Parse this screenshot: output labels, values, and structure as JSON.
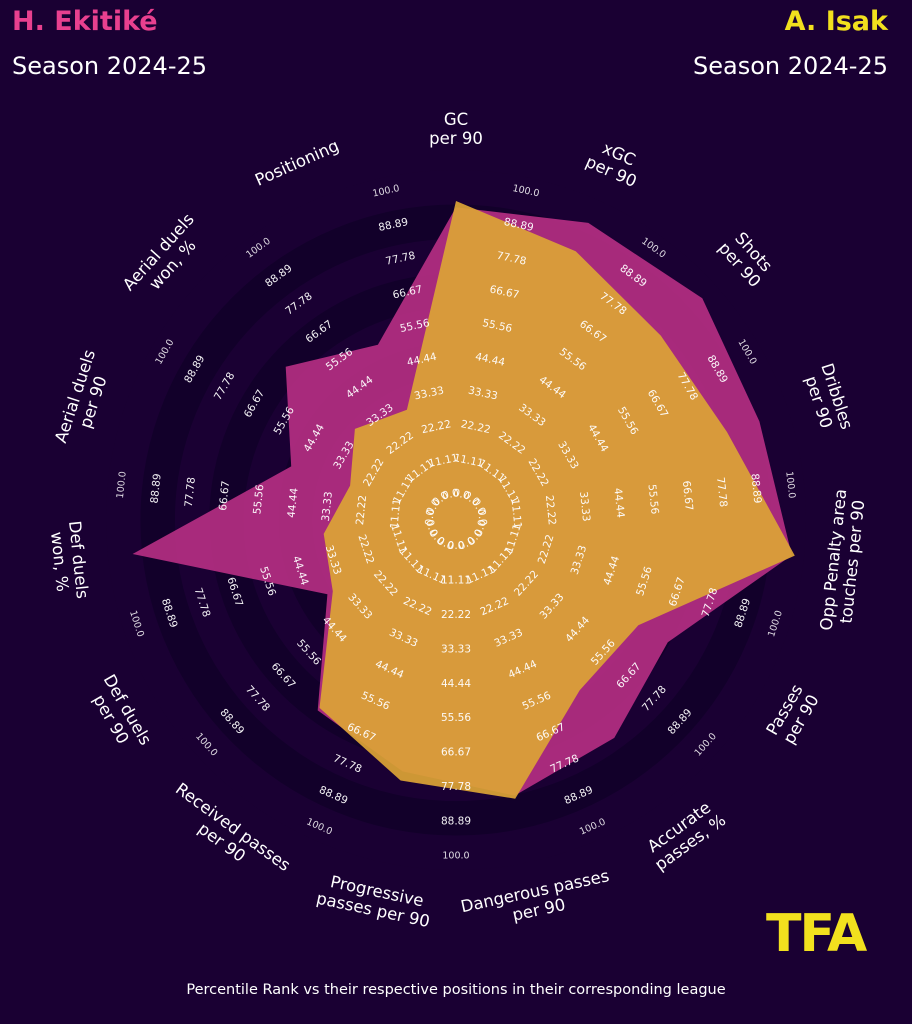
{
  "header": {
    "left": {
      "player": "H. Ekitiké",
      "season": "Season 2024-25"
    },
    "right": {
      "player": "A. Isak",
      "season": "Season 2024-25"
    }
  },
  "colors": {
    "background": "#1a0033",
    "ring_dark": "#12002a",
    "player1": "#c2318a",
    "player2": "#dca236",
    "overlap_note": "#8a8a2a",
    "logo": "#f2e01e"
  },
  "logo": "TFA",
  "footer": "Percentile Rank vs their respective positions in their corresponding league",
  "chart_data": {
    "type": "radar",
    "scale_ticks": [
      "0.0",
      "11.11",
      "22.22",
      "33.33",
      "44.44",
      "55.56",
      "66.67",
      "77.78",
      "88.89",
      "100.0"
    ],
    "range": [
      0,
      100
    ],
    "metrics": [
      {
        "lines": [
          "GC",
          "per 90"
        ]
      },
      {
        "lines": [
          "xGC",
          "per 90"
        ]
      },
      {
        "lines": [
          "Shots",
          "per 90"
        ]
      },
      {
        "lines": [
          "Dribbles",
          "per 90"
        ]
      },
      {
        "lines": [
          "Opp Penalty area",
          "touches per 90"
        ]
      },
      {
        "lines": [
          "Passes",
          "per 90"
        ]
      },
      {
        "lines": [
          "Accurate",
          "passes, %"
        ]
      },
      {
        "lines": [
          "Dangerous passes",
          "per 90"
        ]
      },
      {
        "lines": [
          "Progressive",
          "passes per 90"
        ]
      },
      {
        "lines": [
          "Received passes",
          "per 90"
        ]
      },
      {
        "lines": [
          "Def duels",
          "per 90"
        ]
      },
      {
        "lines": [
          "Def duels",
          "won, %"
        ]
      },
      {
        "lines": [
          "Aerial duels",
          "per 90"
        ]
      },
      {
        "lines": [
          "Aerial duels",
          "won, %"
        ]
      },
      {
        "lines": [
          "Positioning"
        ]
      }
    ],
    "series": [
      {
        "name": "H. Ekitiké",
        "color": "#c2318a",
        "values": [
          88,
          92,
          94,
          90,
          96,
          66,
          74,
          78,
          70,
          63,
          35,
          92,
          43,
          61,
          49
        ]
      },
      {
        "name": "A. Isak",
        "color": "#dca236",
        "values": [
          90,
          82,
          76,
          79,
          97,
          55,
          55,
          79,
          73,
          62,
          33,
          30,
          23,
          31,
          26
        ]
      }
    ]
  }
}
